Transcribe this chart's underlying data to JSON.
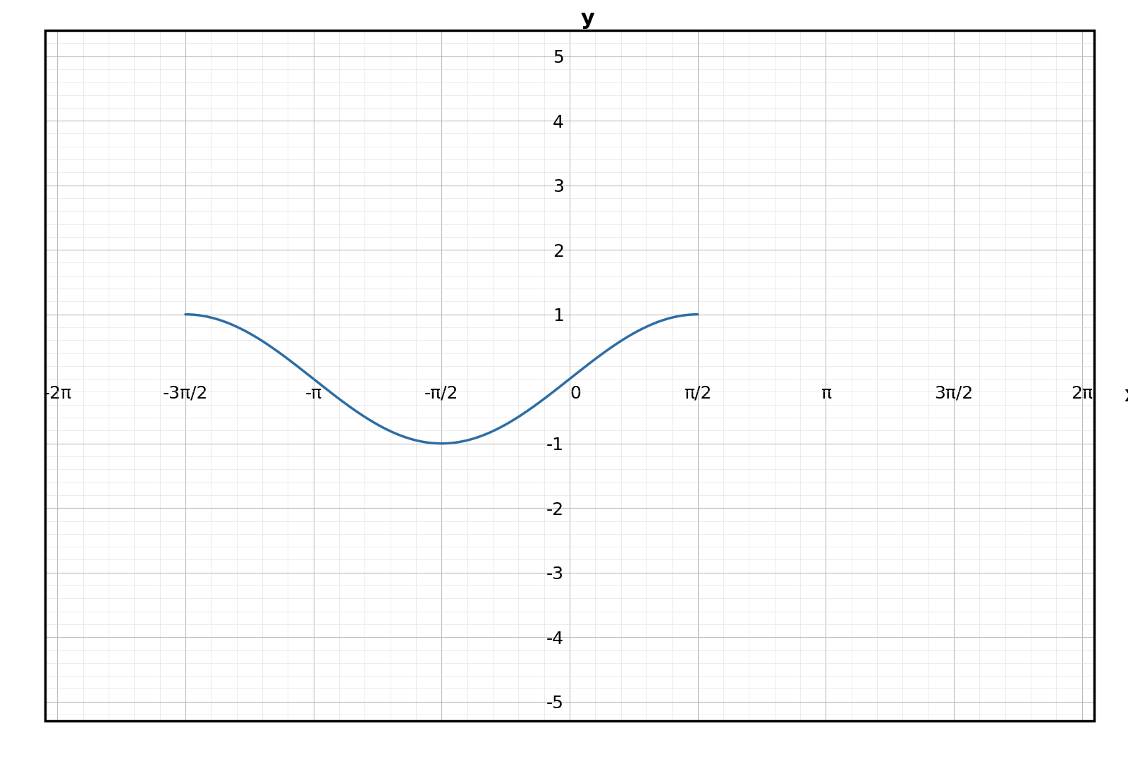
{
  "xlim": [
    -6.283185307179586,
    6.283185307179586
  ],
  "ylim": [
    -5,
    5
  ],
  "x_ticks": [
    -6.283185307179586,
    -4.71238898038469,
    -3.141592653589793,
    -1.5707963267948966,
    0,
    1.5707963267948966,
    3.141592653589793,
    4.71238898038469,
    6.283185307179586
  ],
  "x_tick_labels": [
    "-2π",
    "-3π/2",
    "-π",
    "-π/2",
    "0",
    "π/2",
    "π",
    "3π/2",
    "2π"
  ],
  "y_ticks": [
    -5,
    -4,
    -3,
    -2,
    -1,
    1,
    2,
    3,
    4,
    5
  ],
  "y_tick_labels": [
    "-5",
    "-4",
    "-3",
    "-2",
    "-1",
    "1",
    "2",
    "3",
    "4",
    "5"
  ],
  "curve_color": "#2e6da4",
  "curve_linewidth": 2.5,
  "major_grid_color": "#bbbbbb",
  "minor_grid_color": "#dddddd",
  "major_grid_linewidth": 0.8,
  "minor_grid_linewidth": 0.4,
  "axis_linewidth": 2.0,
  "background_color": "#ffffff",
  "curve_xstart": -4.71238898038469,
  "curve_xend": 1.5707963267948966,
  "tick_fontsize": 18,
  "label_fontsize": 22,
  "arrow_scale": 25,
  "x_label": "x",
  "y_label": "y"
}
